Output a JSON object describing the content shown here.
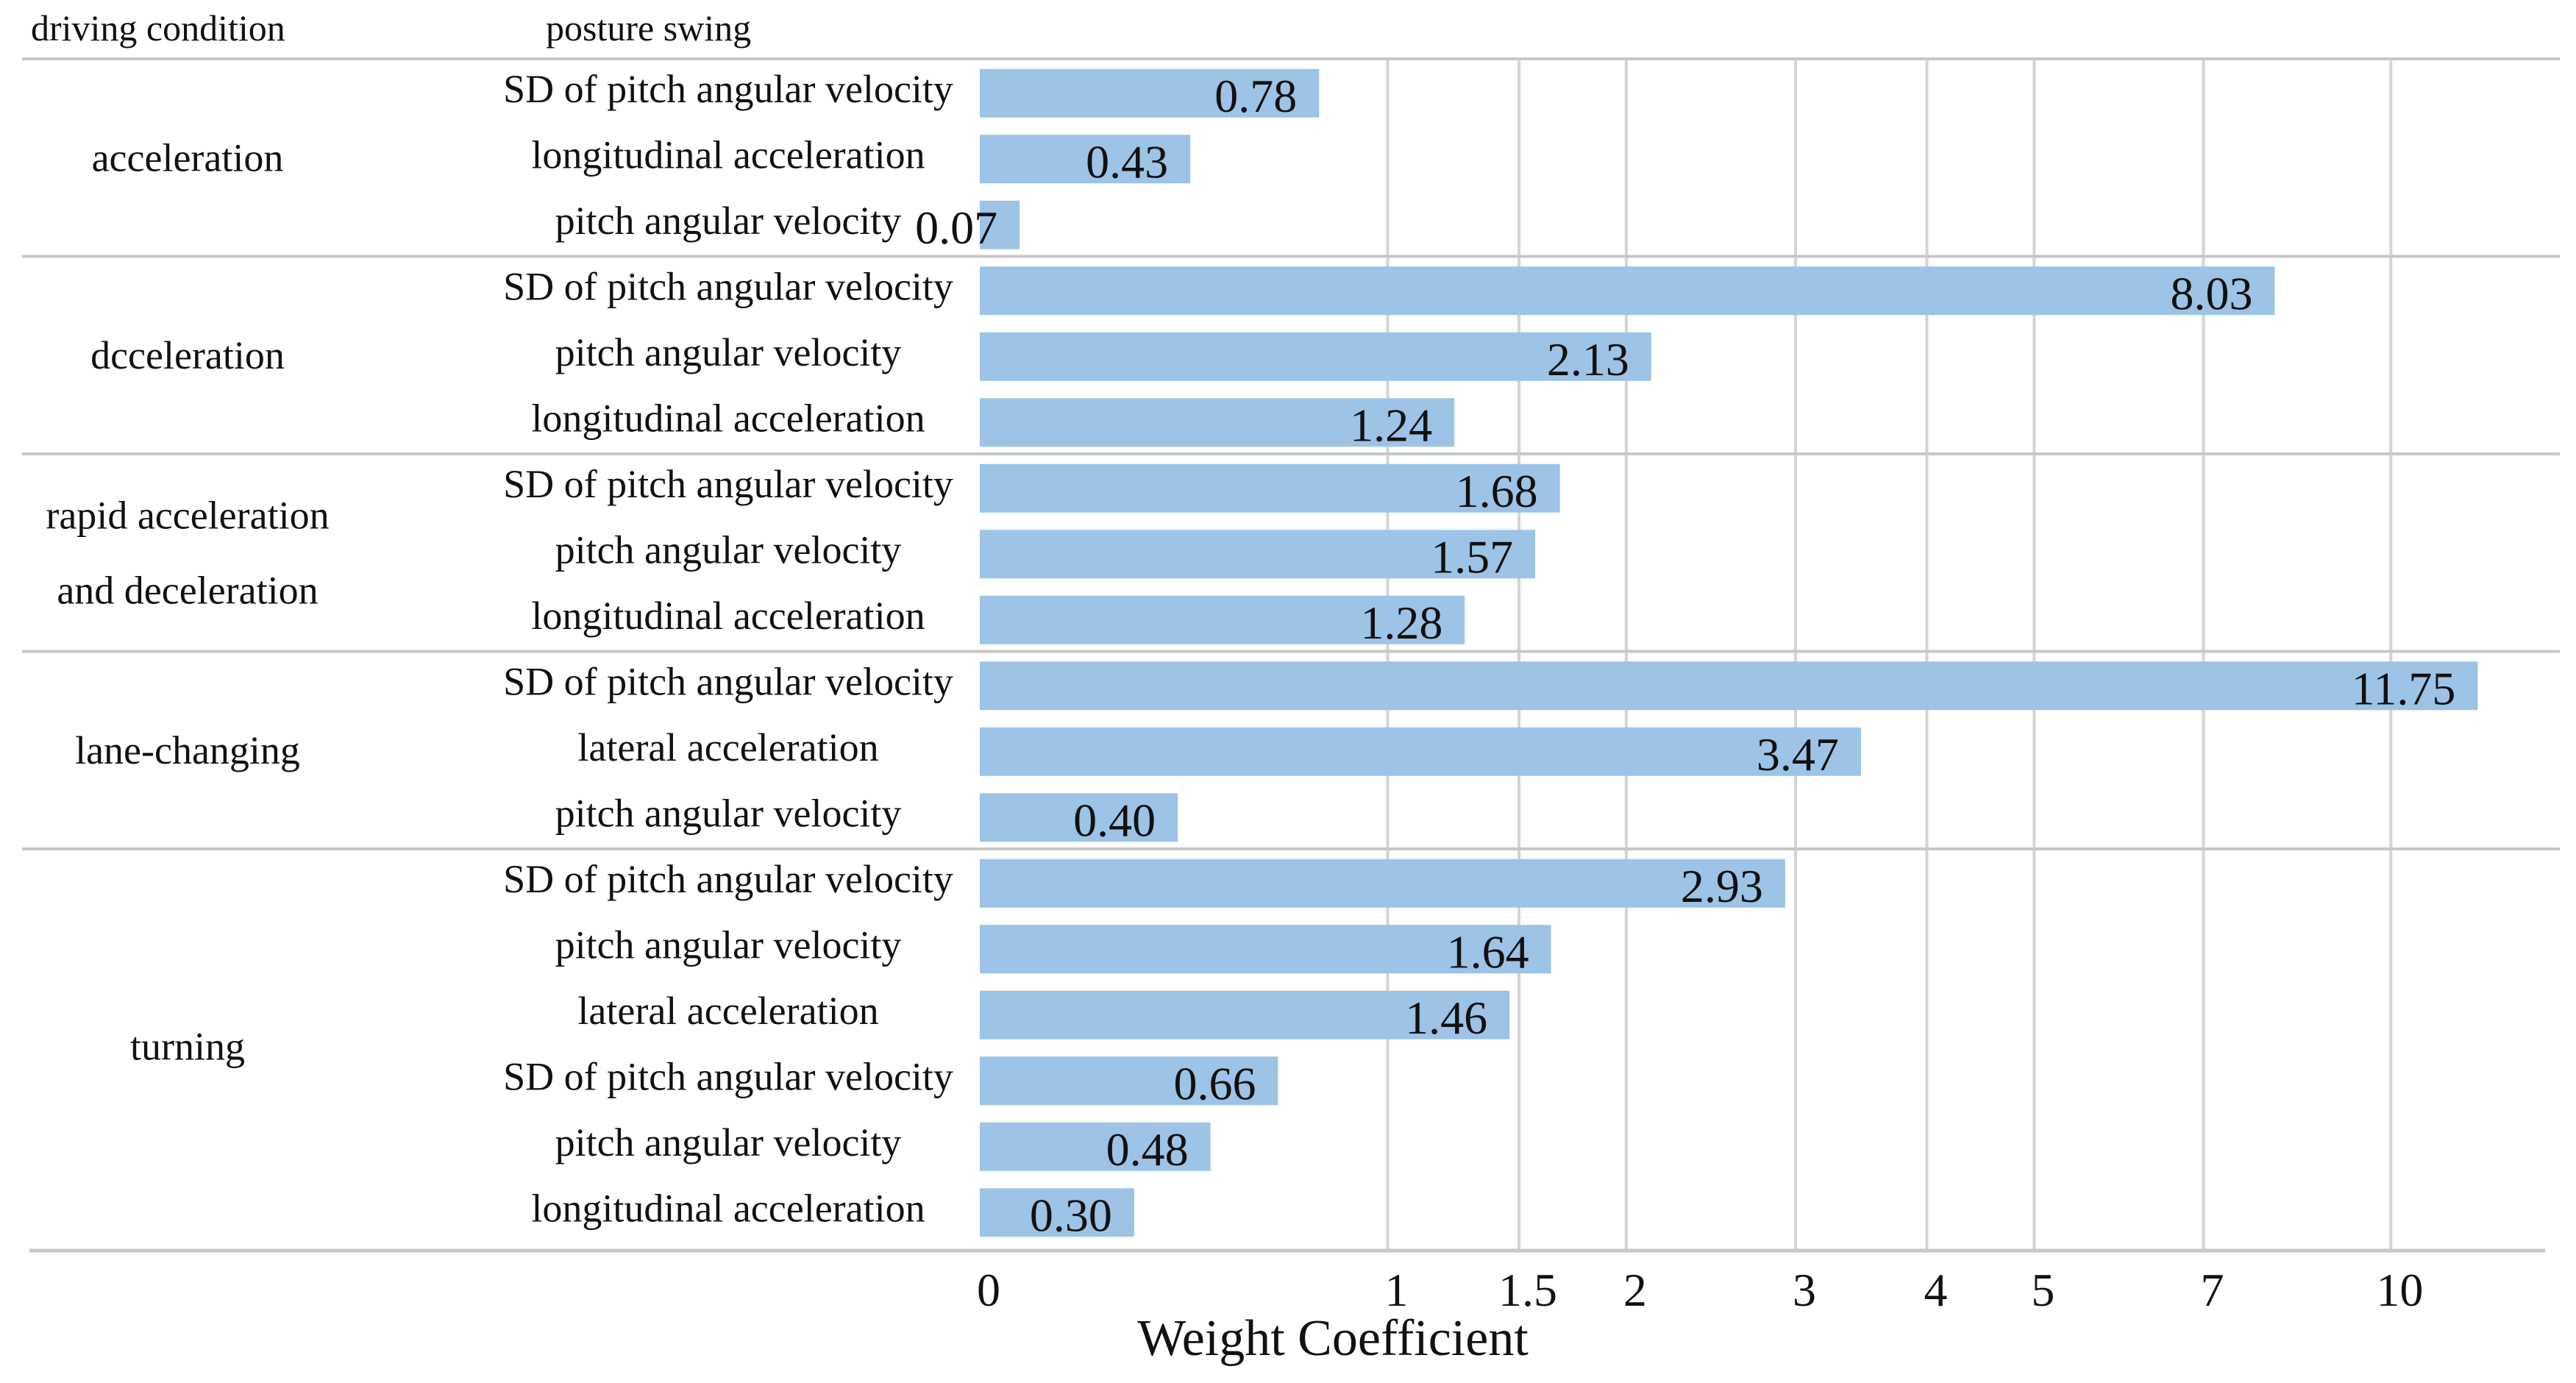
{
  "chart_data": {
    "type": "bar",
    "orientation": "horizontal",
    "xscale": "log1p",
    "xlabel": "Weight Coefficient",
    "column_headers": {
      "condition": "driving condition",
      "metric": "posture swing"
    },
    "xticks": [
      "0",
      "1",
      "1.5",
      "2",
      "3",
      "4",
      "5",
      "7",
      "10"
    ],
    "xtick_values": [
      0,
      1,
      1.5,
      2,
      3,
      4,
      5,
      7,
      10
    ],
    "bar_color": "#9dc3e6",
    "groups": [
      {
        "condition": [
          "acceleration"
        ],
        "bars": [
          {
            "label": "SD of pitch angular velocity",
            "value": 0.78,
            "value_label": "0.78"
          },
          {
            "label": "longitudinal acceleration",
            "value": 0.43,
            "value_label": "0.43"
          },
          {
            "label": "pitch angular velocity",
            "value": 0.07,
            "value_label": "0.07"
          }
        ]
      },
      {
        "condition": [
          "dcceleration"
        ],
        "bars": [
          {
            "label": "SD of pitch angular velocity",
            "value": 8.03,
            "value_label": "8.03"
          },
          {
            "label": "pitch angular velocity",
            "value": 2.13,
            "value_label": "2.13"
          },
          {
            "label": "longitudinal acceleration",
            "value": 1.24,
            "value_label": "1.24"
          }
        ]
      },
      {
        "condition": [
          "rapid acceleration",
          "and deceleration"
        ],
        "bars": [
          {
            "label": "SD of pitch angular velocity",
            "value": 1.68,
            "value_label": "1.68"
          },
          {
            "label": "pitch angular velocity",
            "value": 1.57,
            "value_label": "1.57"
          },
          {
            "label": "longitudinal acceleration",
            "value": 1.28,
            "value_label": "1.28"
          }
        ]
      },
      {
        "condition": [
          "lane-changing"
        ],
        "bars": [
          {
            "label": "SD of pitch angular velocity",
            "value": 11.75,
            "value_label": "11.75"
          },
          {
            "label": "lateral acceleration",
            "value": 3.47,
            "value_label": "3.47"
          },
          {
            "label": "pitch angular velocity",
            "value": 0.4,
            "value_label": "0.40"
          }
        ]
      },
      {
        "condition": [
          "turning"
        ],
        "bars": [
          {
            "label": "SD of pitch angular velocity",
            "value": 2.93,
            "value_label": "2.93"
          },
          {
            "label": "pitch angular velocity",
            "value": 1.64,
            "value_label": "1.64"
          },
          {
            "label": "lateral acceleration",
            "value": 1.46,
            "value_label": "1.46"
          },
          {
            "label": "SD of pitch angular velocity",
            "value": 0.66,
            "value_label": "0.66"
          },
          {
            "label": "pitch angular velocity",
            "value": 0.48,
            "value_label": "0.48"
          },
          {
            "label": "longitudinal acceleration",
            "value": 0.3,
            "value_label": "0.30"
          }
        ]
      }
    ]
  }
}
